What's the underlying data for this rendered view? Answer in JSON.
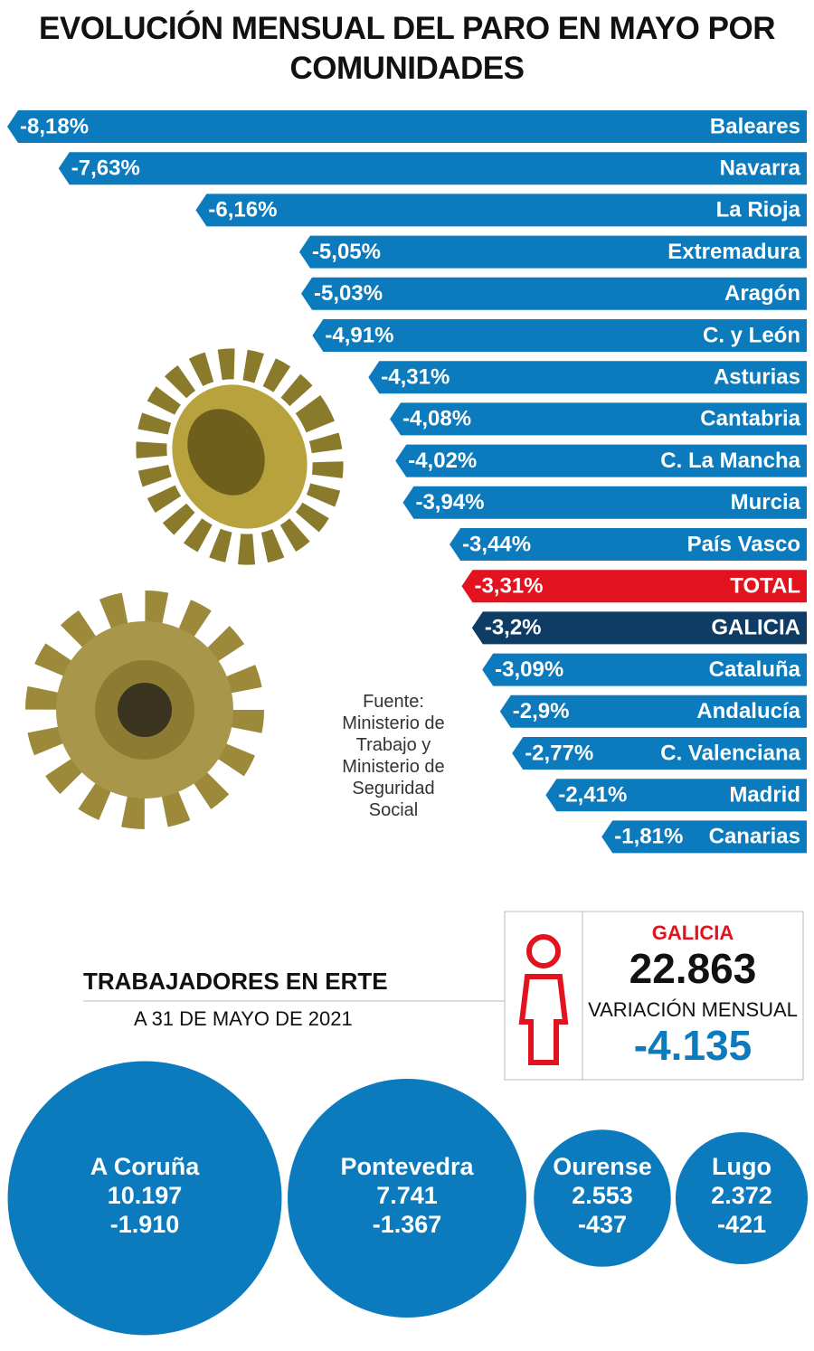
{
  "chart_data": [
    {
      "type": "bar",
      "title": "EVOLUCIÓN MENSUAL DEL PARO EN MAYO POR COMUNIDADES",
      "categories": [
        "Baleares",
        "Navarra",
        "La Rioja",
        "Extremadura",
        "Aragón",
        "C. y León",
        "Asturias",
        "Cantabria",
        "C. La Mancha",
        "Murcia",
        "País Vasco",
        "TOTAL",
        "GALICIA",
        "Cataluña",
        "Andalucía",
        "C. Valenciana",
        "Madrid",
        "Canarias"
      ],
      "values": [
        -8.18,
        -7.63,
        -6.16,
        -5.05,
        -5.03,
        -4.91,
        -4.31,
        -4.08,
        -4.02,
        -3.94,
        -3.44,
        -3.31,
        -3.2,
        -3.09,
        -2.9,
        -2.77,
        -2.41,
        -1.81
      ],
      "value_labels": [
        "-8,18%",
        "-7,63%",
        "-6,16%",
        "-5,05%",
        "-5,03%",
        "-4,91%",
        "-4,31%",
        "-4,08%",
        "-4,02%",
        "-3,94%",
        "-3,44%",
        "-3,31%",
        "-3,2%",
        "-3,09%",
        "-2,9%",
        "-2,77%",
        "-2,41%",
        "-1,81%"
      ],
      "colors": [
        "#0b7bbd",
        "#0b7bbd",
        "#0b7bbd",
        "#0b7bbd",
        "#0b7bbd",
        "#0b7bbd",
        "#0b7bbd",
        "#0b7bbd",
        "#0b7bbd",
        "#0b7bbd",
        "#0b7bbd",
        "#e2131e",
        "#0e3c64",
        "#0b7bbd",
        "#0b7bbd",
        "#0b7bbd",
        "#0b7bbd",
        "#0b7bbd"
      ],
      "source": "Fuente: Ministerio de Trabajo y Ministerio de Seguridad Social"
    },
    {
      "type": "bubble",
      "title": "TRABAJADORES EN ERTE",
      "subtitle": "A 31 DE MAYO DE 2021",
      "highlight": {
        "label": "GALICIA",
        "value": 22863,
        "value_label": "22.863",
        "change_title": "VARIACIÓN MENSUAL",
        "change": -4135,
        "change_label": "-4.135"
      },
      "categories": [
        "A Coruña",
        "Pontevedra",
        "Ourense",
        "Lugo"
      ],
      "values": [
        10197,
        7741,
        2553,
        2372
      ],
      "value_labels": [
        "10.197",
        "7.741",
        "2.553",
        "2.372"
      ],
      "changes": [
        -1910,
        -1367,
        -437,
        -421
      ],
      "change_labels": [
        "-1.910",
        "-1.367",
        "-437",
        "-421"
      ],
      "color": "#0b7bbd"
    }
  ]
}
